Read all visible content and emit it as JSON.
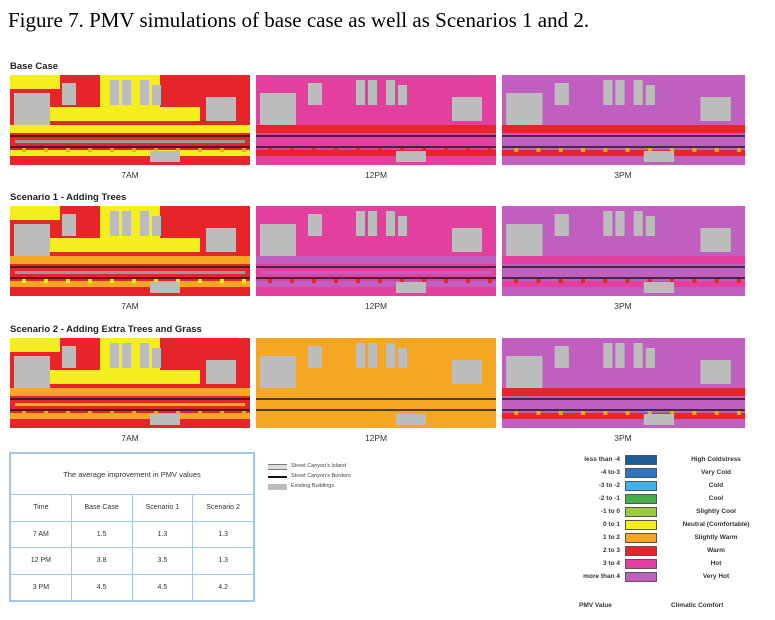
{
  "caption": "Figure 7. PMV simulations of base case as well as Scenarios 1 and 2.",
  "colors": {
    "very_hot": "#c05fc0",
    "hot": "#e23f9e",
    "warm": "#e8242b",
    "slightly_warm": "#f5a623",
    "neutral": "#f4ee1c",
    "building": "#bcbcbc",
    "island": "#9a9a9a"
  },
  "rows": [
    {
      "title": "Base Case",
      "maps": [
        {
          "time": "7AM",
          "background": "warm"
        },
        {
          "time": "12PM",
          "background": "hot"
        },
        {
          "time": "3PM",
          "background": "very_hot"
        }
      ]
    },
    {
      "title": "Scenario 1 - Adding Trees",
      "maps": [
        {
          "time": "7AM",
          "background": "warm"
        },
        {
          "time": "12PM",
          "background": "hot"
        },
        {
          "time": "3PM",
          "background": "very_hot"
        }
      ]
    },
    {
      "title": "Scenario 2 - Adding Extra Trees and Grass",
      "maps": [
        {
          "time": "7AM",
          "background": "warm"
        },
        {
          "time": "12PM",
          "background": "slightly_warm"
        },
        {
          "time": "3PM",
          "background": "very_hot"
        }
      ]
    }
  ],
  "table": {
    "caption": "The average improvement in PMV values",
    "headers": [
      "Time",
      "Base Case",
      "Scenario 1",
      "Scenario 2"
    ],
    "rows": [
      [
        "7 AM",
        "1.5",
        "1.3",
        "1.3"
      ],
      [
        "12 PM",
        "3.8",
        "3.5",
        "1.3"
      ],
      [
        "3 PM",
        "4.5",
        "4.5",
        "4.2"
      ]
    ]
  },
  "map_legend": [
    {
      "label": "Street Canyon's Island",
      "symbol": "island"
    },
    {
      "label": "Street Canyon's Borders",
      "symbol": "border"
    },
    {
      "label": "Existing Buildings",
      "symbol": "building"
    }
  ],
  "pmv_legend": {
    "items": [
      {
        "range": "less than -4",
        "comfort": "High Coldstress",
        "color": "#1f5b94"
      },
      {
        "range": "-4 to-3",
        "comfort": "Very Cold",
        "color": "#2f74c0"
      },
      {
        "range": "-3 to -2",
        "comfort": "Cold",
        "color": "#3fb1e8"
      },
      {
        "range": "-2 to -1",
        "comfort": "Cool",
        "color": "#47b04b"
      },
      {
        "range": "-1 to 0",
        "comfort": "Slightly Cool",
        "color": "#9ccb3b"
      },
      {
        "range": "0 to 1",
        "comfort": "Neutral (Comfortable)",
        "color": "#f4ee1c"
      },
      {
        "range": "1 to 2",
        "comfort": "Slightly Warm",
        "color": "#f5a623"
      },
      {
        "range": "2 to 3",
        "comfort": "Warm",
        "color": "#e8242b"
      },
      {
        "range": "3 to 4",
        "comfort": "Hot",
        "color": "#e23f9e"
      },
      {
        "range": "more than 4",
        "comfort": "Very Hot",
        "color": "#c05fc0"
      }
    ],
    "footer_value": "PMV Value",
    "footer_comfort": "Climatic Comfort"
  }
}
